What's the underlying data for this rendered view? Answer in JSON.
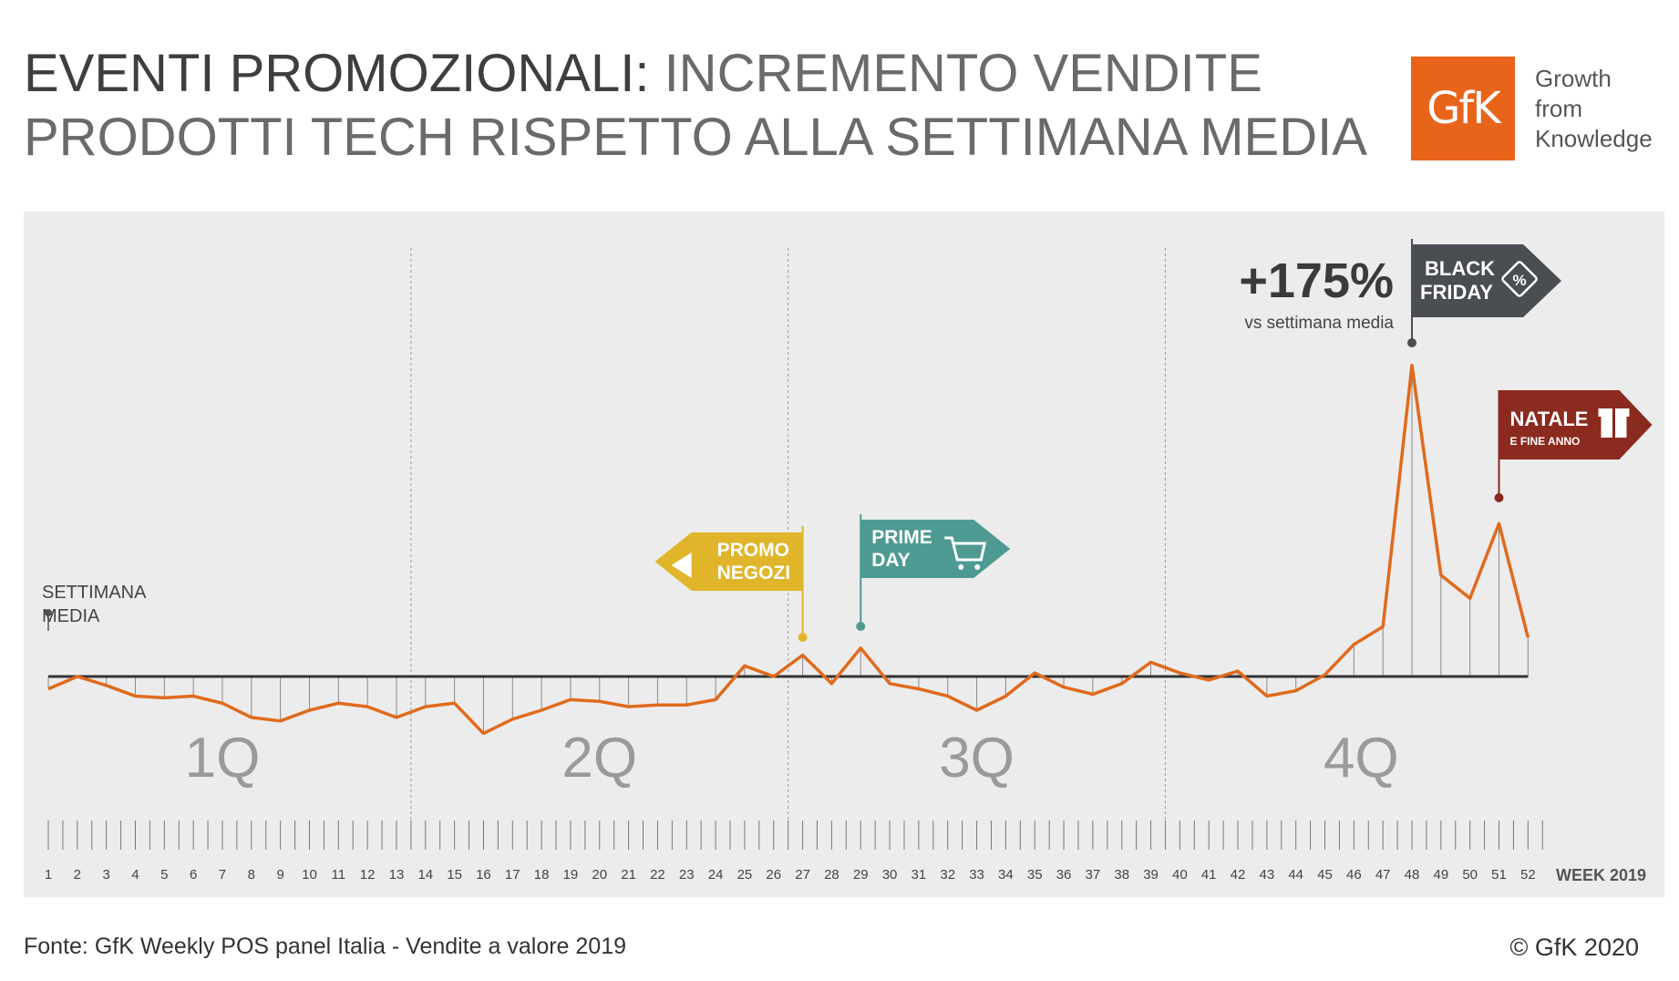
{
  "header": {
    "title_strong": "EVENTI PROMOZIONALI",
    "title_colon": ":",
    "title_line1_rest": " INCREMENTO VENDITE",
    "title_line2": "PRODOTTI TECH RISPETTO ALLA SETTIMANA MEDIA"
  },
  "logo": {
    "text": "GfK",
    "tagline1": "Growth",
    "tagline2": "from",
    "tagline3": "Knowledge"
  },
  "colors": {
    "line": "#e06a1c",
    "baseline": "#333333",
    "promo": "#e0b52a",
    "prime": "#4e9a92",
    "blackfriday": "#4a4d52",
    "natale": "#8b2a1e",
    "quarter_label": "#9a9a9a"
  },
  "chart_data": {
    "type": "line",
    "x_label": "WEEK 2019",
    "baseline_label_1": "SETTIMANA",
    "baseline_label_2": "MEDIA",
    "quarters": [
      "1Q",
      "2Q",
      "3Q",
      "4Q"
    ],
    "quarter_bounds": [
      13.5,
      26.5,
      39.5
    ],
    "x": [
      1,
      2,
      3,
      4,
      5,
      6,
      7,
      8,
      9,
      10,
      11,
      12,
      13,
      14,
      15,
      16,
      17,
      18,
      19,
      20,
      21,
      22,
      23,
      24,
      25,
      26,
      27,
      28,
      29,
      30,
      31,
      32,
      33,
      34,
      35,
      36,
      37,
      38,
      39,
      40,
      41,
      42,
      43,
      44,
      45,
      46,
      47,
      48,
      49,
      50,
      51,
      52
    ],
    "series": [
      {
        "values": [
          -7,
          0,
          -5,
          -11,
          -12,
          -11,
          -15,
          -23,
          -25,
          -19,
          -15,
          -17,
          -23,
          -17,
          -15,
          -32,
          -24,
          -19,
          -13,
          -14,
          -17,
          -16,
          -16,
          -13,
          6,
          0,
          12,
          -4,
          16,
          -4,
          -7,
          -11,
          -19,
          -11,
          2,
          -6,
          -10,
          -4,
          8,
          2,
          -2,
          3,
          -11,
          -8,
          1,
          18,
          28,
          175,
          57,
          44,
          86,
          22
        ]
      }
    ],
    "annotations": {
      "peak_value": "+175%",
      "peak_sub": "vs settimana media",
      "promo_1": "PROMO",
      "promo_2": "NEGOZI",
      "prime_1": "PRIME",
      "prime_2": "DAY",
      "bf_1": "BLACK",
      "bf_2": "FRIDAY",
      "natale_1": "NATALE",
      "natale_2": "E FINE ANNO"
    }
  },
  "footer": {
    "source": "Fonte: GfK Weekly POS panel Italia - Vendite a valore 2019",
    "copyright": "© GfK 2020"
  }
}
